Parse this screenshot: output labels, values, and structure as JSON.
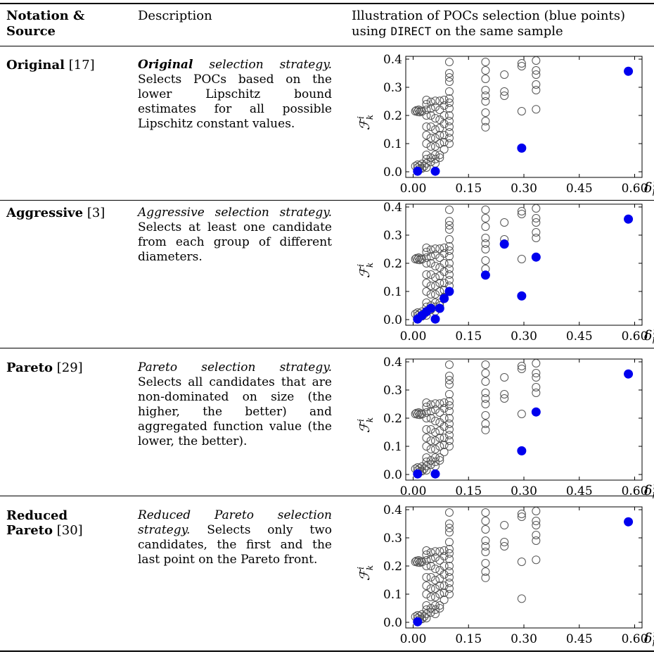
{
  "header": {
    "notation_line1": "Notation &",
    "notation_line2": "Source",
    "description": "Description",
    "illustration_prefix": "Illustration of POCs selection (blue points)",
    "illustration_using": "using",
    "illustration_algo": "DIRECT",
    "illustration_suffix": "on the same sample"
  },
  "rows": [
    {
      "name": "Original",
      "ref": "[17]",
      "desc_lead": "Original",
      "desc_lead_bold": true,
      "desc_title_rest": " selection strategy.",
      "desc_body": "Selects POCs based on the lower Lipschitz bound estimates for all possible Lipschitz constant values."
    },
    {
      "name": "Aggressive",
      "ref": "[3]",
      "desc_lead": "Aggressive",
      "desc_lead_bold": false,
      "desc_title_rest": " selection strategy.",
      "desc_body": "Selects at least one candidate from each group of different diameters."
    },
    {
      "name": "Pareto",
      "ref": "[29]",
      "desc_lead": "Pareto",
      "desc_lead_bold": false,
      "desc_title_rest": " selection strategy.",
      "desc_body": "Selects all candidates that are non-dominated on size (the higher, the better) and aggregated function value (the lower, the better)."
    },
    {
      "name_line1": "Reduced",
      "name": "Pareto",
      "ref": "[30]",
      "desc_lead": "Reduced",
      "desc_lead_bold": false,
      "desc_title_rest": " Pareto selection strategy.",
      "desc_body": "Selects only two candidates, the first and the last point on the Pareto front."
    }
  ],
  "chart_data": [
    {
      "type": "scatter",
      "ylabel": "F_k^i",
      "xlabel": "δ_k^i",
      "xlim": [
        -0.02,
        0.62
      ],
      "ylim": [
        -0.02,
        0.41
      ],
      "xticks": [
        "0.00",
        "0.15",
        "0.30",
        "0.45",
        "0.60"
      ],
      "yticks": [
        "0.0",
        "0.1",
        "0.2",
        "0.3",
        "0.4"
      ],
      "series": [
        {
          "marker": "open-circle",
          "color": "#555555",
          "ref": "candidates"
        },
        {
          "marker": "filled-circle",
          "color": "#0000ee",
          "points": [
            [
              0.012,
              0.002
            ],
            [
              0.06,
              0.002
            ],
            [
              0.294,
              0.084
            ],
            [
              0.583,
              0.357
            ]
          ]
        }
      ]
    },
    {
      "type": "scatter",
      "ylabel": "F_k^i",
      "xlabel": "δ_k^i",
      "xlim": [
        -0.02,
        0.62
      ],
      "ylim": [
        -0.02,
        0.41
      ],
      "xticks": [
        "0.00",
        "0.15",
        "0.30",
        "0.45",
        "0.60"
      ],
      "yticks": [
        "0.0",
        "0.1",
        "0.2",
        "0.3",
        "0.4"
      ],
      "series": [
        {
          "marker": "open-circle",
          "color": "#555555",
          "ref": "candidates"
        },
        {
          "marker": "filled-circle",
          "color": "#0000ee",
          "points": [
            [
              0.012,
              0.002
            ],
            [
              0.024,
              0.015
            ],
            [
              0.036,
              0.028
            ],
            [
              0.048,
              0.04
            ],
            [
              0.06,
              0.002
            ],
            [
              0.072,
              0.04
            ],
            [
              0.084,
              0.075
            ],
            [
              0.098,
              0.1
            ],
            [
              0.196,
              0.158
            ],
            [
              0.247,
              0.268
            ],
            [
              0.294,
              0.084
            ],
            [
              0.333,
              0.222
            ],
            [
              0.583,
              0.357
            ]
          ]
        }
      ]
    },
    {
      "type": "scatter",
      "ylabel": "F_k^i",
      "xlabel": "δ_k^i",
      "xlim": [
        -0.02,
        0.62
      ],
      "ylim": [
        -0.02,
        0.41
      ],
      "xticks": [
        "0.00",
        "0.15",
        "0.30",
        "0.45",
        "0.60"
      ],
      "yticks": [
        "0.0",
        "0.1",
        "0.2",
        "0.3",
        "0.4"
      ],
      "series": [
        {
          "marker": "open-circle",
          "color": "#555555",
          "ref": "candidates"
        },
        {
          "marker": "filled-circle",
          "color": "#0000ee",
          "points": [
            [
              0.012,
              0.002
            ],
            [
              0.06,
              0.002
            ],
            [
              0.294,
              0.084
            ],
            [
              0.333,
              0.222
            ],
            [
              0.583,
              0.357
            ]
          ]
        }
      ]
    },
    {
      "type": "scatter",
      "ylabel": "F_k^i",
      "xlabel": "δ_k^i",
      "xlim": [
        -0.02,
        0.62
      ],
      "ylim": [
        -0.02,
        0.41
      ],
      "xticks": [
        "0.00",
        "0.15",
        "0.30",
        "0.45",
        "0.60"
      ],
      "yticks": [
        "0.0",
        "0.1",
        "0.2",
        "0.3",
        "0.4"
      ],
      "series": [
        {
          "marker": "open-circle",
          "color": "#555555",
          "ref": "candidates"
        },
        {
          "marker": "filled-circle",
          "color": "#0000ee",
          "points": [
            [
              0.012,
              0.002
            ],
            [
              0.583,
              0.357
            ]
          ]
        }
      ]
    }
  ],
  "candidates": [
    [
      0.006,
      0.215
    ],
    [
      0.009,
      0.218
    ],
    [
      0.012,
      0.213
    ],
    [
      0.015,
      0.22
    ],
    [
      0.018,
      0.212
    ],
    [
      0.021,
      0.217
    ],
    [
      0.024,
      0.214
    ],
    [
      0.006,
      0.02
    ],
    [
      0.012,
      0.025
    ],
    [
      0.018,
      0.022
    ],
    [
      0.024,
      0.028
    ],
    [
      0.012,
      0.015
    ],
    [
      0.018,
      0.01
    ],
    [
      0.024,
      0.012
    ],
    [
      0.03,
      0.02
    ],
    [
      0.036,
      0.03
    ],
    [
      0.036,
      0.015
    ],
    [
      0.036,
      0.255
    ],
    [
      0.036,
      0.24
    ],
    [
      0.036,
      0.22
    ],
    [
      0.036,
      0.2
    ],
    [
      0.036,
      0.16
    ],
    [
      0.036,
      0.13
    ],
    [
      0.036,
      0.1
    ],
    [
      0.036,
      0.06
    ],
    [
      0.036,
      0.045
    ],
    [
      0.048,
      0.248
    ],
    [
      0.048,
      0.225
    ],
    [
      0.048,
      0.2
    ],
    [
      0.048,
      0.16
    ],
    [
      0.048,
      0.12
    ],
    [
      0.048,
      0.09
    ],
    [
      0.048,
      0.05
    ],
    [
      0.048,
      0.035
    ],
    [
      0.06,
      0.252
    ],
    [
      0.06,
      0.23
    ],
    [
      0.06,
      0.19
    ],
    [
      0.06,
      0.15
    ],
    [
      0.06,
      0.12
    ],
    [
      0.06,
      0.09
    ],
    [
      0.06,
      0.06
    ],
    [
      0.06,
      0.045
    ],
    [
      0.06,
      0.03
    ],
    [
      0.072,
      0.252
    ],
    [
      0.072,
      0.22
    ],
    [
      0.072,
      0.185
    ],
    [
      0.072,
      0.155
    ],
    [
      0.072,
      0.13
    ],
    [
      0.072,
      0.1
    ],
    [
      0.072,
      0.06
    ],
    [
      0.072,
      0.05
    ],
    [
      0.084,
      0.255
    ],
    [
      0.084,
      0.235
    ],
    [
      0.084,
      0.2
    ],
    [
      0.084,
      0.17
    ],
    [
      0.084,
      0.13
    ],
    [
      0.084,
      0.105
    ],
    [
      0.084,
      0.08
    ],
    [
      0.098,
      0.39
    ],
    [
      0.098,
      0.35
    ],
    [
      0.098,
      0.335
    ],
    [
      0.098,
      0.32
    ],
    [
      0.098,
      0.285
    ],
    [
      0.098,
      0.26
    ],
    [
      0.098,
      0.245
    ],
    [
      0.098,
      0.225
    ],
    [
      0.098,
      0.2
    ],
    [
      0.098,
      0.18
    ],
    [
      0.098,
      0.16
    ],
    [
      0.098,
      0.14
    ],
    [
      0.098,
      0.12
    ],
    [
      0.098,
      0.1
    ],
    [
      0.196,
      0.39
    ],
    [
      0.196,
      0.36
    ],
    [
      0.196,
      0.33
    ],
    [
      0.196,
      0.29
    ],
    [
      0.196,
      0.27
    ],
    [
      0.196,
      0.25
    ],
    [
      0.196,
      0.21
    ],
    [
      0.196,
      0.18
    ],
    [
      0.196,
      0.158
    ],
    [
      0.247,
      0.345
    ],
    [
      0.247,
      0.285
    ],
    [
      0.247,
      0.27
    ],
    [
      0.294,
      0.385
    ],
    [
      0.294,
      0.375
    ],
    [
      0.294,
      0.215
    ],
    [
      0.294,
      0.084
    ],
    [
      0.333,
      0.395
    ],
    [
      0.333,
      0.36
    ],
    [
      0.333,
      0.345
    ],
    [
      0.333,
      0.31
    ],
    [
      0.333,
      0.29
    ],
    [
      0.333,
      0.222
    ],
    [
      0.583,
      0.357
    ]
  ],
  "style": {
    "blue": "#0000ee",
    "gray": "#555555"
  }
}
